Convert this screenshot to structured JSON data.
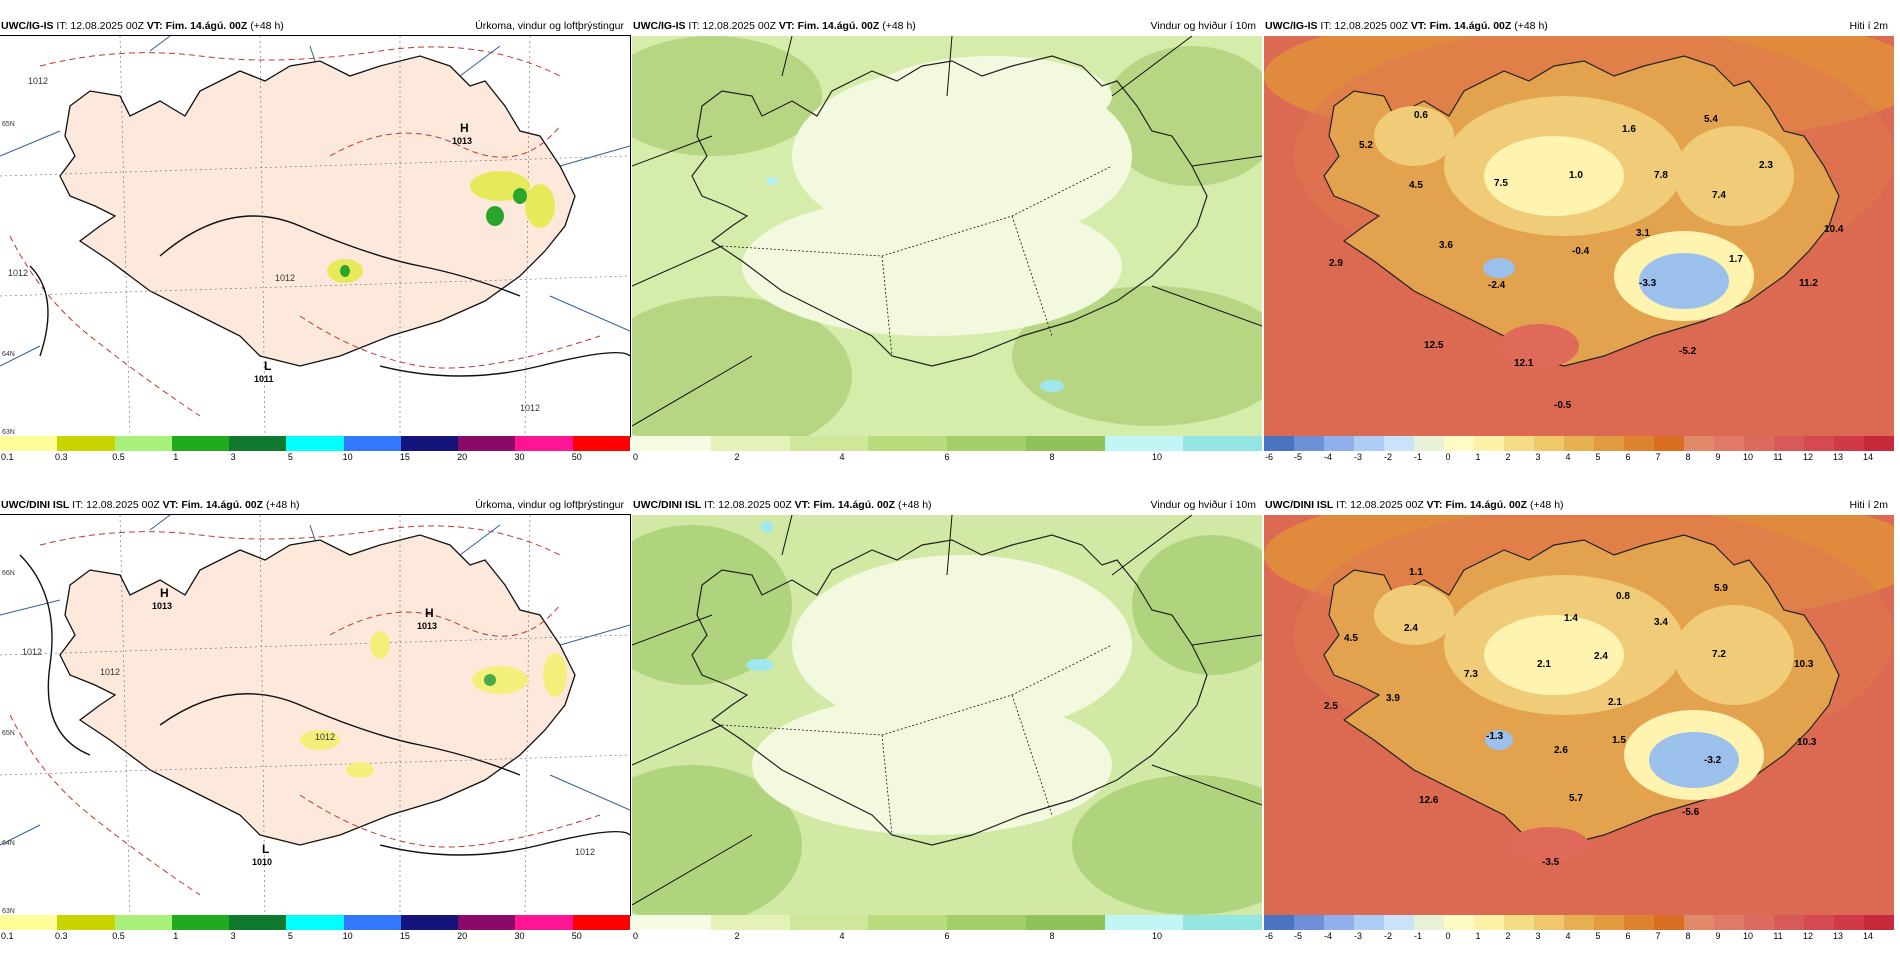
{
  "rows": [
    {
      "model": "UWC/IG-IS",
      "it": "IT: 12.08.2025 00Z",
      "vt_label": "VT:",
      "vt": "Fim. 14.ágú. 00Z",
      "lead": "(+48 h)",
      "precip": {
        "title": "Úrkoma, vindur og loftþrýstingur",
        "pressure_marks": [
          {
            "type": "H",
            "value": "1013"
          },
          {
            "type": "L",
            "value": "1011"
          }
        ],
        "isobar_labels": [
          "1012",
          "1012",
          "1012",
          "1012"
        ],
        "lat_labels": [
          "65N",
          "64N",
          "63N"
        ]
      },
      "wind": {
        "title": "Vindur og hviður í 10m"
      },
      "temp": {
        "title": "Hiti í 2m",
        "values": [
          "0.6",
          "5.2",
          "4.5",
          "7.5",
          "1.0",
          "1.6",
          "7.8",
          "5.4",
          "2.3",
          "7.4",
          "10.4",
          "3.6",
          "3.1",
          "1.7",
          "11.2",
          "2.9",
          "-2.4",
          "-0.4",
          "-3.3",
          "12.5",
          "12.1",
          "-5.2",
          "-0.5"
        ]
      }
    },
    {
      "model": "UWC/DINI ISL",
      "it": "IT: 12.08.2025 00Z",
      "vt_label": "VT:",
      "vt": "Fim. 14.ágú. 00Z",
      "lead": "(+48 h)",
      "precip": {
        "title": "Úrkoma, vindur og loftþrýstingur",
        "pressure_marks": [
          {
            "type": "H",
            "value": "1013"
          },
          {
            "type": "H",
            "value": "1013"
          },
          {
            "type": "L",
            "value": "1010"
          }
        ],
        "isobar_labels": [
          "1012",
          "1012",
          "1012",
          "1012"
        ],
        "lat_labels": [
          "66N",
          "65N",
          "64N",
          "63N"
        ]
      },
      "wind": {
        "title": "Vindur og hviður í 10m"
      },
      "temp": {
        "title": "Hiti í 2m",
        "values": [
          "1.1",
          "4.5",
          "2.4",
          "7.3",
          "2.1",
          "1.4",
          "0.8",
          "3.4",
          "5.9",
          "7.2",
          "10.3",
          "2.4",
          "2.1",
          "2.5",
          "3.9",
          "-1.3",
          "2.6",
          "1.5",
          "-3.2",
          "10.3",
          "12.6",
          "5.7",
          "-5.6",
          "-3.5"
        ]
      }
    }
  ],
  "colorbars": {
    "precip": {
      "colors": [
        "#ffff99",
        "#c8d400",
        "#a8f07a",
        "#1faa1f",
        "#0f7a2e",
        "#00ffff",
        "#3377ff",
        "#14147a",
        "#8a0a6a",
        "#ff1493",
        "#ff0000"
      ],
      "ticks": [
        "0.1",
        "0.3",
        "0.5",
        "1",
        "3",
        "5",
        "10",
        "15",
        "20",
        "30",
        "50"
      ]
    },
    "wind": {
      "colors": [
        "#f6fbe4",
        "#e4f2b8",
        "#cfe79a",
        "#b8db7e",
        "#a2cf68",
        "#8fc35a",
        "#c2f6f4",
        "#93e6e2"
      ],
      "ticks": [
        "0",
        "2",
        "4",
        "6",
        "8",
        "10"
      ]
    },
    "temp": {
      "colors": [
        "#4a73c2",
        "#6d90d6",
        "#8fb0ea",
        "#aecdf5",
        "#cbe2fb",
        "#e8f2d8",
        "#fffbc4",
        "#fff1a8",
        "#f5dd86",
        "#eec86a",
        "#e6b052",
        "#e29b3f",
        "#dc8430",
        "#d86e22",
        "#e08a6a",
        "#e07a66",
        "#dc6a5f",
        "#d85a58",
        "#d44a50",
        "#d03a48",
        "#c8283c"
      ],
      "ticks": [
        "-6",
        "-5",
        "-4",
        "-3",
        "-2",
        "-1",
        "0",
        "1",
        "2",
        "3",
        "4",
        "5",
        "6",
        "7",
        "8",
        "9",
        "10",
        "11",
        "12",
        "13",
        "14"
      ]
    }
  }
}
